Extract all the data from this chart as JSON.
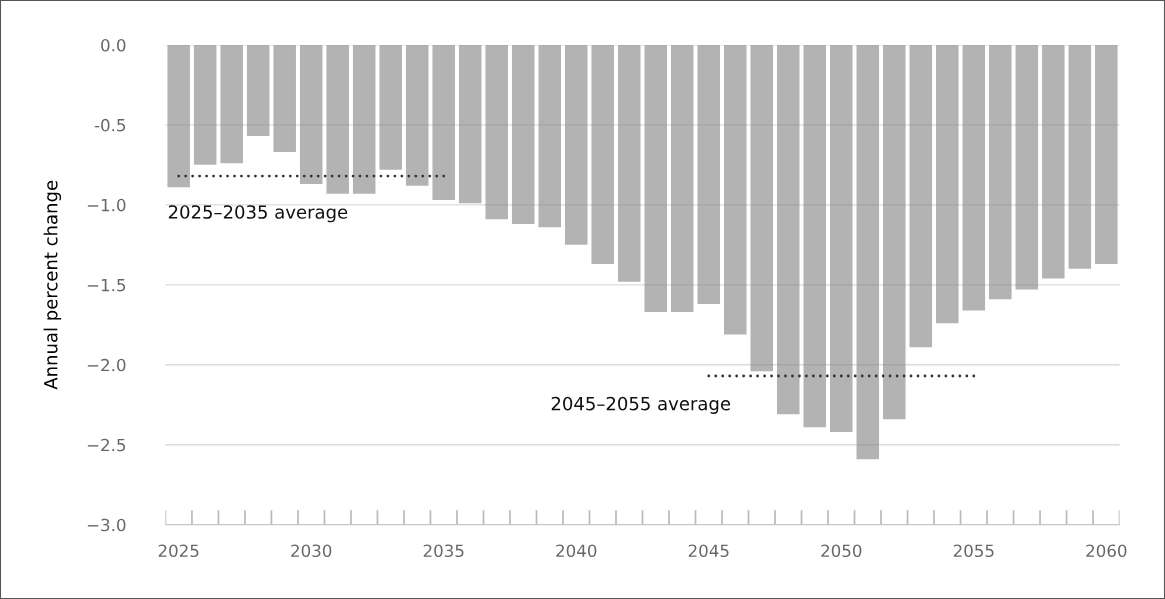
{
  "chart_data": {
    "type": "bar",
    "ylabel": "Annual percent change",
    "x": [
      2025,
      2026,
      2027,
      2028,
      2029,
      2030,
      2031,
      2032,
      2033,
      2034,
      2035,
      2036,
      2037,
      2038,
      2039,
      2040,
      2041,
      2042,
      2043,
      2044,
      2045,
      2046,
      2047,
      2048,
      2049,
      2050,
      2051,
      2052,
      2053,
      2054,
      2055,
      2056,
      2057,
      2058,
      2059,
      2060
    ],
    "series": [
      {
        "color": "#b3b3b3",
        "values": [
          -0.89,
          -0.75,
          -0.74,
          -0.57,
          -0.67,
          -0.87,
          -0.93,
          -0.93,
          -0.78,
          -0.88,
          -0.97,
          -0.99,
          -1.09,
          -1.12,
          -1.14,
          -1.25,
          -1.37,
          -1.48,
          -1.67,
          -1.67,
          -1.62,
          -1.81,
          -2.04,
          -2.31,
          -2.39,
          -2.42,
          -2.59,
          -2.34,
          -1.89,
          -1.74,
          -1.66,
          -1.59,
          -1.53,
          -1.46,
          -1.4,
          -1.37
        ]
      },
      {
        "type": "line",
        "color": "#333333",
        "line_style": "dotted",
        "x": [
          2025,
          2035
        ],
        "values": [
          -0.82,
          -0.82
        ]
      },
      {
        "type": "line",
        "color": "#333333",
        "line_style": "dotted",
        "x": [
          2045,
          2055
        ],
        "values": [
          -2.07,
          -2.07
        ]
      }
    ],
    "annotations": [
      {
        "text": "2025–2035 average",
        "x": 2025,
        "y": -0.82
      },
      {
        "text": "2045–2055 average",
        "x": 2045,
        "y": -2.07
      }
    ],
    "xlim": [
      2024.5,
      2060.5
    ],
    "xticks": [
      2025,
      2030,
      2035,
      2040,
      2045,
      2050,
      2055,
      2060
    ],
    "ylim": [
      -3.0,
      0.0
    ],
    "yticks": [
      {
        "value": 0.0,
        "label": "0.0"
      },
      {
        "value": -0.5,
        "label": "-0.5"
      },
      {
        "value": -1.0,
        "label": "−1.0"
      },
      {
        "value": -1.5,
        "label": "−1.5"
      },
      {
        "value": -2.0,
        "label": "−2.0"
      },
      {
        "value": -2.5,
        "label": "−2.5"
      },
      {
        "value": -3.0,
        "label": "−3.0"
      }
    ],
    "grid": "y"
  }
}
